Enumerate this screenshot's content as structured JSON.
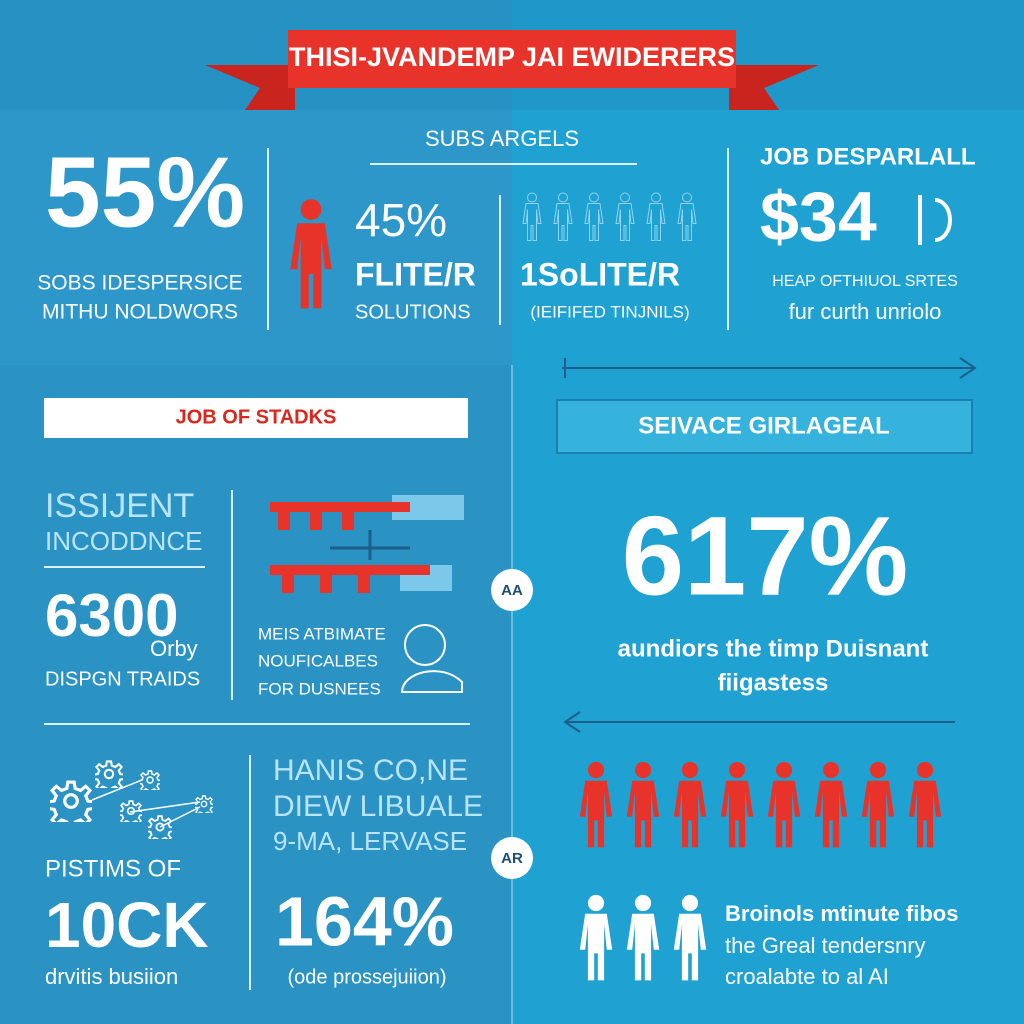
{
  "banner": "THISI-JVANDEMP JAI EWIDERERS",
  "top": {
    "stat1": {
      "value": "55%",
      "lines": [
        "SOBS IDESPERSICE",
        "MITHU NOLDWORS"
      ]
    },
    "subhead": "SUBS ARGELS",
    "stat2": {
      "value": "45%",
      "label": "FLITE/R",
      "caption": "SOLUTIONS"
    },
    "stat3": {
      "label": "1SoLITE/R",
      "caption": "(IEIFIFED TINJNILS)"
    },
    "stat4": {
      "heading": "JOB DESPARLALL",
      "value": "$34",
      "lines": [
        "HEAP OFTHIUOL SRTES",
        "fur curth unriolo"
      ]
    }
  },
  "left_header": "JOB OF STADKS",
  "right_header": "SEIVACE GIRLAGEAL",
  "incidence": {
    "lines": [
      "ISSIJENT",
      "INCODDNCE"
    ],
    "value": "6300",
    "unit": "Orby",
    "caption": "DISPGN TRAIDS"
  },
  "automate": {
    "lines": [
      "MEIS ATBIMATE",
      "NOUFICALBES",
      "FOR DUSNEES"
    ]
  },
  "badges": [
    "AA",
    "AR"
  ],
  "big_stat": {
    "value": "617%",
    "lines": [
      "aundiors the timp Duisnant",
      "fiigastess"
    ]
  },
  "bottom_left": {
    "heading": "PISTIMS OF",
    "value": "10CK",
    "caption": "drvitis busiion"
  },
  "bottom_mid": {
    "lines": [
      "HANIS CO,NE",
      "DIEW LIBUALE",
      "9-MA, LERVASE"
    ],
    "value": "164%",
    "caption": "(ode prossejuiion)"
  },
  "bottom_right": {
    "lines": [
      "Broinols mtinute fibos",
      "the Greal tendersnry",
      "croalabte to al AI"
    ]
  }
}
